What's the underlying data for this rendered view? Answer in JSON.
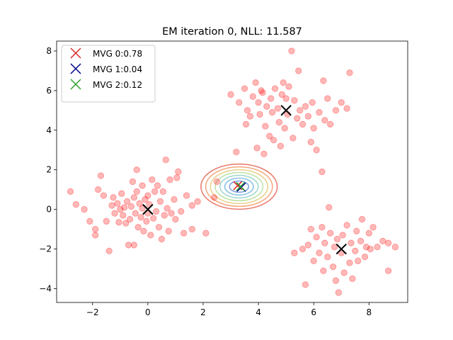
{
  "chart_data": {
    "type": "scatter",
    "title": "EM iteration 0, NLL: 11.587",
    "xlabel": "",
    "ylabel": "",
    "xlim": [
      -3.3,
      9.4
    ],
    "ylim": [
      -4.7,
      8.5
    ],
    "xticks": [
      -2,
      0,
      2,
      4,
      6,
      8
    ],
    "yticks": [
      -4,
      -2,
      0,
      2,
      4,
      6,
      8
    ],
    "grid": false,
    "legend_position": "top-left",
    "colors": {
      "points": "#ff0000",
      "mvg0": "#d62728",
      "mvg1": "#00008b",
      "mvg2": "#2ca02c",
      "true_centers": "#000000"
    },
    "legend": [
      {
        "label": "MVG 0:0.78",
        "color": "#d62728"
      },
      {
        "label": "MVG 1:0.04",
        "color": "#00008b"
      },
      {
        "label": "MVG 2:0.12",
        "color": "#2ca02c"
      }
    ],
    "true_centers": [
      {
        "x": 0,
        "y": 0
      },
      {
        "x": 5,
        "y": 5
      },
      {
        "x": 7,
        "y": -2
      }
    ],
    "mvg_means": [
      {
        "name": "MVG 0",
        "x": 3.25,
        "y": 1.2
      },
      {
        "name": "MVG 1",
        "x": 3.38,
        "y": 1.12
      },
      {
        "name": "MVG 2",
        "x": 3.35,
        "y": 1.15
      }
    ],
    "contour_center": {
      "x": 3.3,
      "y": 1.15
    },
    "contour_levels": [
      0.3,
      0.45,
      0.6,
      0.75,
      0.9,
      1.05,
      1.2
    ],
    "points": [
      {
        "x": -2.8,
        "y": 0.9
      },
      {
        "x": -2.6,
        "y": 0.25
      },
      {
        "x": -2.3,
        "y": 0.0
      },
      {
        "x": -2.1,
        "y": -0.6
      },
      {
        "x": -1.9,
        "y": -1.0
      },
      {
        "x": -1.9,
        "y": -1.3
      },
      {
        "x": -1.8,
        "y": 1.0
      },
      {
        "x": -1.7,
        "y": 1.7
      },
      {
        "x": -1.6,
        "y": 0.7
      },
      {
        "x": -1.5,
        "y": -0.6
      },
      {
        "x": -1.4,
        "y": -2.1
      },
      {
        "x": -1.3,
        "y": 0.2
      },
      {
        "x": -1.25,
        "y": 0.6
      },
      {
        "x": -1.2,
        "y": -0.2
      },
      {
        "x": -1.1,
        "y": 0.3
      },
      {
        "x": -1.05,
        "y": -0.65
      },
      {
        "x": -1.0,
        "y": 0.0
      },
      {
        "x": -0.95,
        "y": 0.8
      },
      {
        "x": -0.9,
        "y": -0.3
      },
      {
        "x": -0.85,
        "y": 0.1
      },
      {
        "x": -0.8,
        "y": -0.7
      },
      {
        "x": -0.75,
        "y": 0.4
      },
      {
        "x": -0.7,
        "y": -1.8
      },
      {
        "x": -0.65,
        "y": -0.5
      },
      {
        "x": -0.6,
        "y": 0.15
      },
      {
        "x": -0.55,
        "y": 1.4
      },
      {
        "x": -0.5,
        "y": -1.8
      },
      {
        "x": -0.5,
        "y": 0.6
      },
      {
        "x": -0.45,
        "y": -0.2
      },
      {
        "x": -0.4,
        "y": 2.0
      },
      {
        "x": -0.4,
        "y": 0.9
      },
      {
        "x": -0.35,
        "y": -0.9
      },
      {
        "x": -0.3,
        "y": 0.3
      },
      {
        "x": -0.25,
        "y": -0.4
      },
      {
        "x": -0.2,
        "y": 1.2
      },
      {
        "x": -0.2,
        "y": 0.05
      },
      {
        "x": -0.15,
        "y": -1.1
      },
      {
        "x": -0.1,
        "y": 0.5
      },
      {
        "x": -0.05,
        "y": -0.6
      },
      {
        "x": 0.0,
        "y": 0.7
      },
      {
        "x": 0.0,
        "y": -0.2
      },
      {
        "x": 0.05,
        "y": 0.25
      },
      {
        "x": 0.1,
        "y": -1.3
      },
      {
        "x": 0.15,
        "y": 1.5
      },
      {
        "x": 0.2,
        "y": -0.45
      },
      {
        "x": 0.25,
        "y": 0.9
      },
      {
        "x": 0.3,
        "y": -0.1
      },
      {
        "x": 0.35,
        "y": 1.2
      },
      {
        "x": 0.4,
        "y": -0.9
      },
      {
        "x": 0.45,
        "y": 0.4
      },
      {
        "x": 0.5,
        "y": -1.5
      },
      {
        "x": 0.55,
        "y": 0.9
      },
      {
        "x": 0.6,
        "y": -0.3
      },
      {
        "x": 0.65,
        "y": 2.5
      },
      {
        "x": 0.7,
        "y": 0.05
      },
      {
        "x": 0.75,
        "y": -1.1
      },
      {
        "x": 0.8,
        "y": 1.5
      },
      {
        "x": 0.85,
        "y": -0.2
      },
      {
        "x": 0.95,
        "y": 0.5
      },
      {
        "x": 1.0,
        "y": -0.5
      },
      {
        "x": 1.05,
        "y": 1.6
      },
      {
        "x": 1.1,
        "y": 1.9
      },
      {
        "x": 1.2,
        "y": -0.1
      },
      {
        "x": 1.3,
        "y": -1.2
      },
      {
        "x": 1.4,
        "y": 0.7
      },
      {
        "x": 1.6,
        "y": 0.2
      },
      {
        "x": 1.6,
        "y": -1.0
      },
      {
        "x": 1.8,
        "y": 0.4
      },
      {
        "x": 2.1,
        "y": -1.2
      },
      {
        "x": 2.4,
        "y": 0.6
      },
      {
        "x": 2.5,
        "y": 1.4
      },
      {
        "x": 3.2,
        "y": 2.9
      },
      {
        "x": 3.0,
        "y": 5.8
      },
      {
        "x": 3.3,
        "y": 5.4
      },
      {
        "x": 3.5,
        "y": 6.1
      },
      {
        "x": 3.55,
        "y": 4.3
      },
      {
        "x": 3.6,
        "y": 5.0
      },
      {
        "x": 3.7,
        "y": 4.7
      },
      {
        "x": 3.8,
        "y": 5.7
      },
      {
        "x": 3.9,
        "y": 6.4
      },
      {
        "x": 3.95,
        "y": 3.1
      },
      {
        "x": 4.0,
        "y": 5.4
      },
      {
        "x": 4.05,
        "y": 4.8
      },
      {
        "x": 4.1,
        "y": 6.0
      },
      {
        "x": 4.15,
        "y": 5.9
      },
      {
        "x": 4.2,
        "y": 2.8
      },
      {
        "x": 4.25,
        "y": 4.2
      },
      {
        "x": 4.3,
        "y": 5.2
      },
      {
        "x": 4.4,
        "y": 3.7
      },
      {
        "x": 4.45,
        "y": 5.6
      },
      {
        "x": 4.5,
        "y": 4.9
      },
      {
        "x": 4.55,
        "y": 3.5
      },
      {
        "x": 4.6,
        "y": 6.1
      },
      {
        "x": 4.7,
        "y": 5.1
      },
      {
        "x": 4.75,
        "y": 4.4
      },
      {
        "x": 4.8,
        "y": 3.2
      },
      {
        "x": 4.85,
        "y": 5.8
      },
      {
        "x": 4.9,
        "y": 6.4
      },
      {
        "x": 4.95,
        "y": 4.1
      },
      {
        "x": 5.0,
        "y": 5.6
      },
      {
        "x": 5.05,
        "y": 4.8
      },
      {
        "x": 5.1,
        "y": 6.2
      },
      {
        "x": 5.2,
        "y": 8.0
      },
      {
        "x": 5.25,
        "y": 3.6
      },
      {
        "x": 5.3,
        "y": 5.5
      },
      {
        "x": 5.4,
        "y": 4.6
      },
      {
        "x": 5.45,
        "y": 7.0
      },
      {
        "x": 5.5,
        "y": 5.0
      },
      {
        "x": 5.6,
        "y": 4.3
      },
      {
        "x": 5.7,
        "y": 5.2
      },
      {
        "x": 5.8,
        "y": 4.7
      },
      {
        "x": 5.9,
        "y": 3.4
      },
      {
        "x": 5.95,
        "y": 5.4
      },
      {
        "x": 6.0,
        "y": 4.1
      },
      {
        "x": 6.1,
        "y": 3.0
      },
      {
        "x": 6.2,
        "y": 4.9
      },
      {
        "x": 6.3,
        "y": 1.9
      },
      {
        "x": 6.35,
        "y": 6.5
      },
      {
        "x": 6.4,
        "y": 4.5
      },
      {
        "x": 6.5,
        "y": 5.6
      },
      {
        "x": 6.6,
        "y": 4.3
      },
      {
        "x": 6.8,
        "y": 5.0
      },
      {
        "x": 7.0,
        "y": 5.4
      },
      {
        "x": 7.2,
        "y": 5.1
      },
      {
        "x": 7.3,
        "y": 6.9
      },
      {
        "x": 5.7,
        "y": -3.8
      },
      {
        "x": 5.3,
        "y": -2.2
      },
      {
        "x": 5.6,
        "y": -2.0
      },
      {
        "x": 5.8,
        "y": -1.8
      },
      {
        "x": 5.9,
        "y": -1.0
      },
      {
        "x": 6.0,
        "y": -2.6
      },
      {
        "x": 6.1,
        "y": -1.4
      },
      {
        "x": 6.2,
        "y": -2.2
      },
      {
        "x": 6.3,
        "y": -0.9
      },
      {
        "x": 6.35,
        "y": -3.1
      },
      {
        "x": 6.4,
        "y": -1.7
      },
      {
        "x": 6.5,
        "y": -2.4
      },
      {
        "x": 6.55,
        "y": 0.1
      },
      {
        "x": 6.6,
        "y": -1.2
      },
      {
        "x": 6.7,
        "y": -2.9
      },
      {
        "x": 6.75,
        "y": -1.9
      },
      {
        "x": 6.8,
        "y": -3.6
      },
      {
        "x": 6.85,
        "y": -1.5
      },
      {
        "x": 6.9,
        "y": -4.2
      },
      {
        "x": 7.0,
        "y": -2.2
      },
      {
        "x": 7.05,
        "y": -1.3
      },
      {
        "x": 7.1,
        "y": -3.2
      },
      {
        "x": 7.2,
        "y": -0.8
      },
      {
        "x": 7.3,
        "y": -2.7
      },
      {
        "x": 7.35,
        "y": -1.7
      },
      {
        "x": 7.4,
        "y": -3.5
      },
      {
        "x": 7.5,
        "y": -2.1
      },
      {
        "x": 7.55,
        "y": -1.1
      },
      {
        "x": 7.6,
        "y": -2.6
      },
      {
        "x": 7.7,
        "y": -1.6
      },
      {
        "x": 7.75,
        "y": -0.5
      },
      {
        "x": 7.85,
        "y": -2.4
      },
      {
        "x": 7.9,
        "y": -1.9
      },
      {
        "x": 8.0,
        "y": -1.2
      },
      {
        "x": 8.05,
        "y": -2.0
      },
      {
        "x": 8.15,
        "y": -0.9
      },
      {
        "x": 8.3,
        "y": -1.9
      },
      {
        "x": 8.5,
        "y": -1.6
      },
      {
        "x": 8.7,
        "y": -1.7
      },
      {
        "x": 8.7,
        "y": -3.1
      },
      {
        "x": 8.95,
        "y": -1.9
      }
    ]
  }
}
